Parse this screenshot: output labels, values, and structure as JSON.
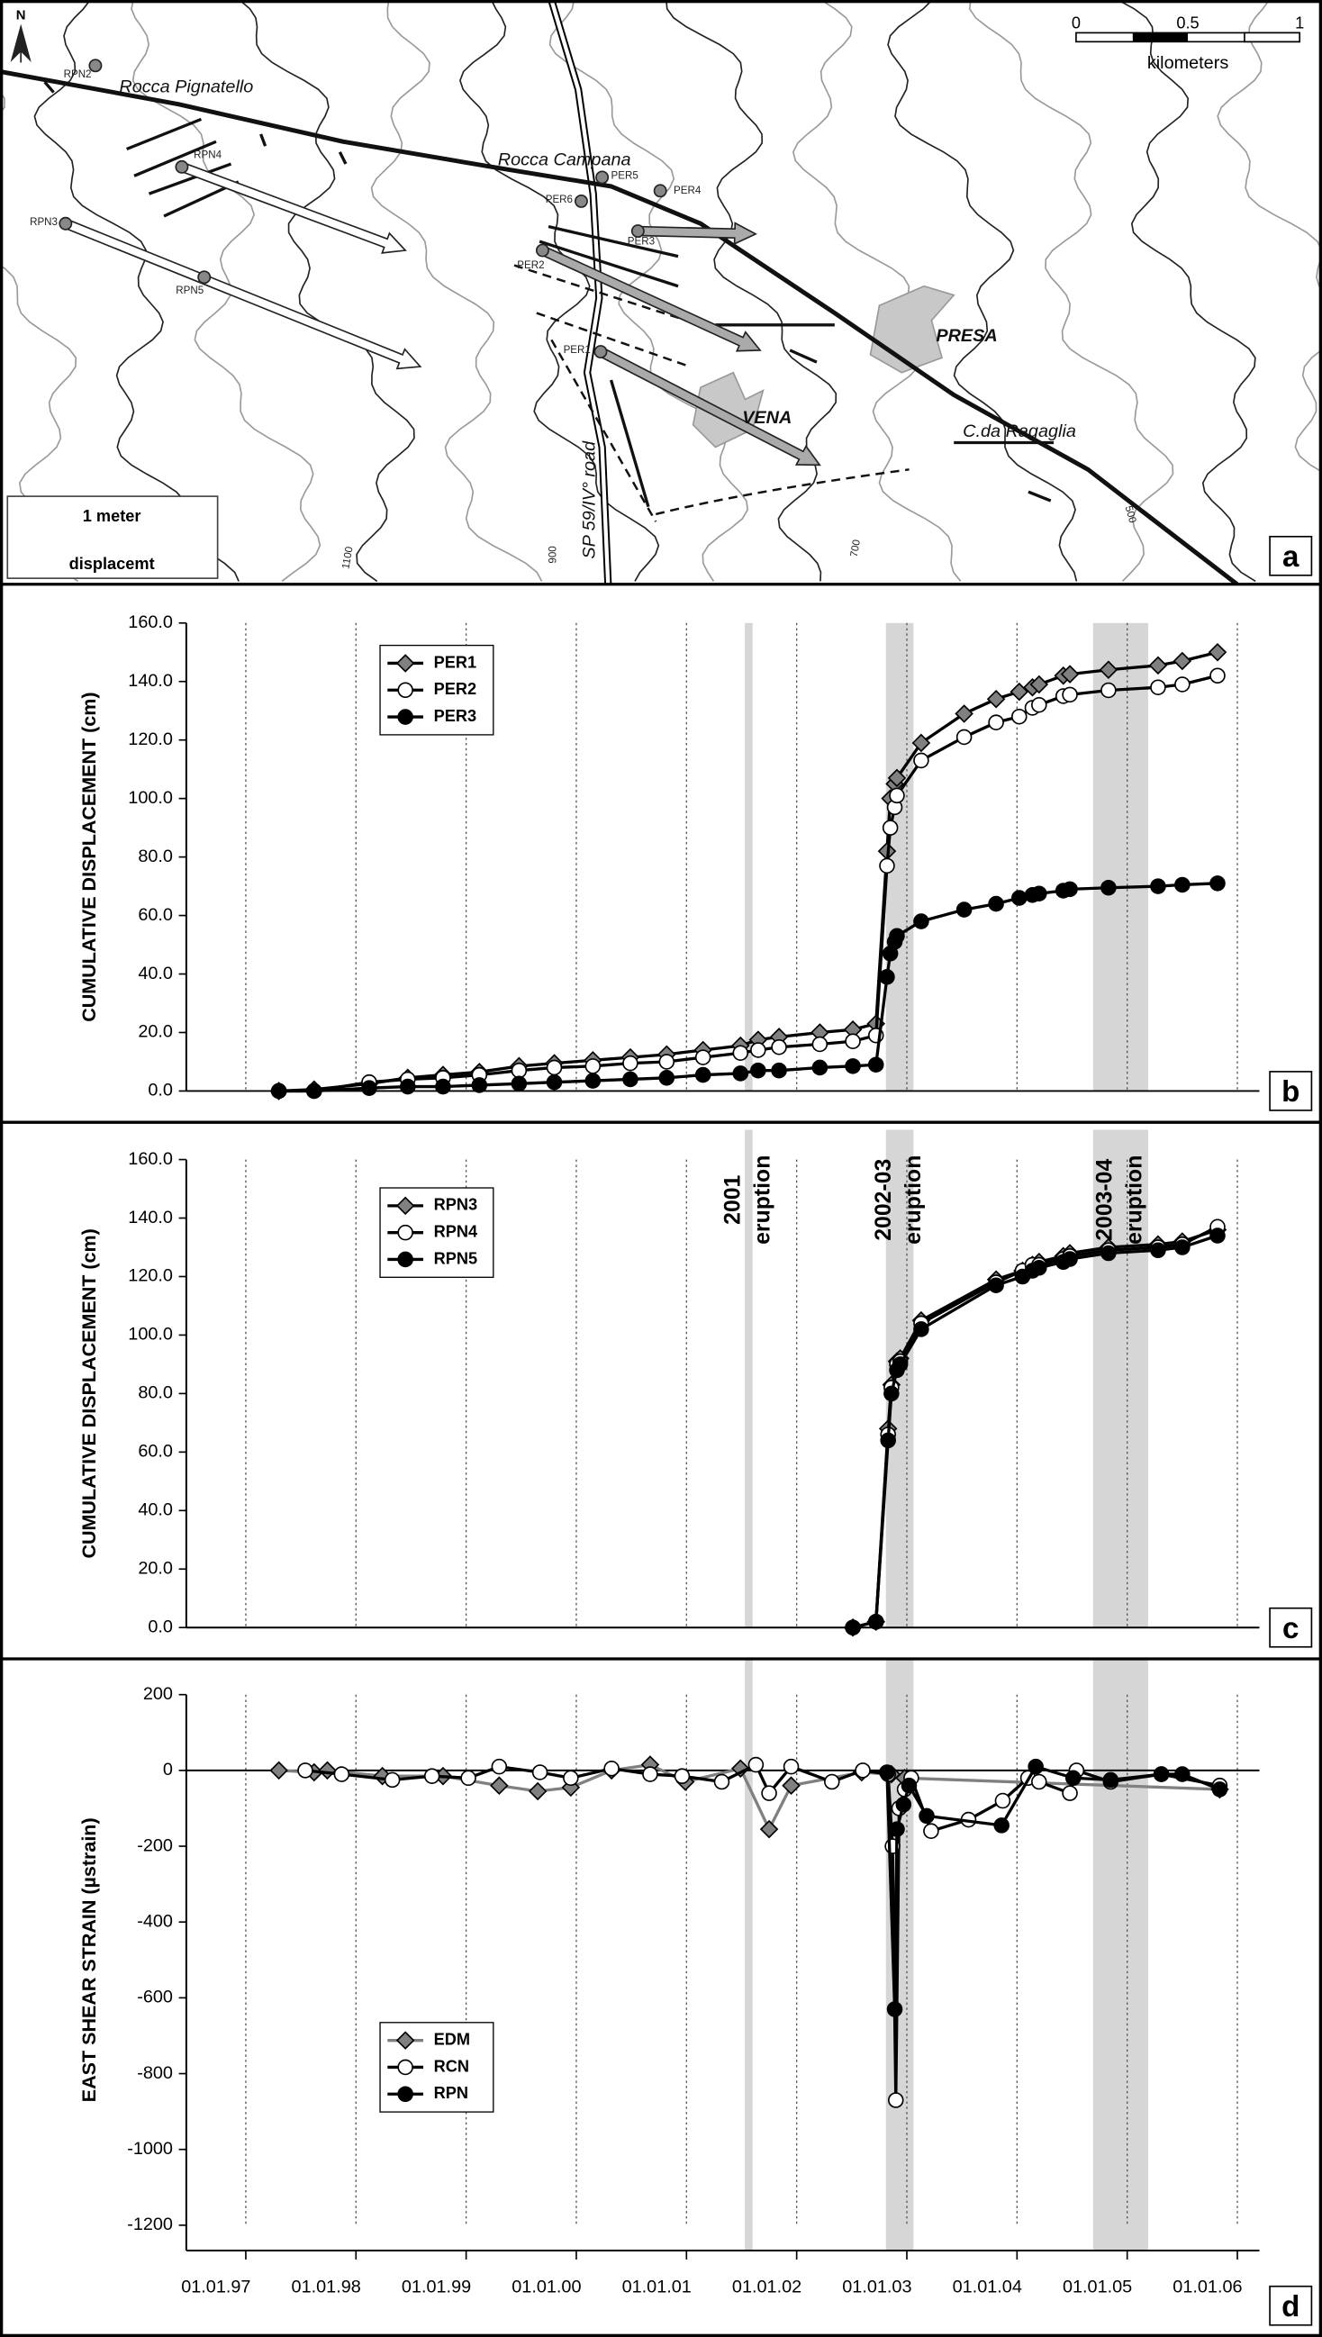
{
  "map": {
    "panel_label": "a",
    "north": "N",
    "scale_bar": {
      "ticks": [
        "0",
        "0.5",
        "1"
      ],
      "unit": "kilometers"
    },
    "displacement_scale": {
      "label": "1 meter",
      "caption": "displacemt"
    },
    "places": [
      "Rocca Pignatello",
      "Rocca Campana",
      "PRESA",
      "VENA",
      "C.da Ragaglia",
      "SP 59/IV° road"
    ],
    "stations": [
      "RPN2",
      "RPN4",
      "RPN3",
      "RPN5",
      "PER6",
      "PER5",
      "PER4",
      "PER3",
      "PER2",
      "PER1"
    ],
    "contour_labels": [
      "1100",
      "900",
      "700",
      "500"
    ]
  },
  "chart_data": [
    {
      "type": "line",
      "panel_label": "b",
      "ylabel": "CUMULATIVE DISPLACEMENT (cm)",
      "x": [
        1997.3,
        1997.62,
        1998.12,
        1998.47,
        1998.79,
        1999.12,
        1999.48,
        1999.8,
        2000.15,
        2000.49,
        2000.82,
        2001.15,
        2001.49,
        2001.65,
        2001.84,
        2002.21,
        2002.51,
        2002.72,
        2002.82,
        2002.85,
        2002.89,
        2002.91,
        2003.13,
        2003.52,
        2003.81,
        2004.02,
        2004.14,
        2004.2,
        2004.42,
        2004.48,
        2004.83,
        2005.28,
        2005.5,
        2005.82
      ],
      "xlim": [
        1996.46,
        2006.2
      ],
      "xticks": [
        1997,
        1998,
        1999,
        2000,
        2001,
        2002,
        2003,
        2004,
        2005,
        2006
      ],
      "show_xtick_labels": false,
      "ylim": [
        0,
        160
      ],
      "yticks": [
        {
          "value": 0,
          "label": "0.0"
        },
        {
          "value": 20,
          "label": "20.0"
        },
        {
          "value": 40,
          "label": "40.0"
        },
        {
          "value": 60,
          "label": "60.0"
        },
        {
          "value": 80,
          "label": "80.0"
        },
        {
          "value": 100,
          "label": "100.0"
        },
        {
          "value": 120,
          "label": "120.0"
        },
        {
          "value": 140,
          "label": "140.0"
        },
        {
          "value": 160,
          "label": "160.0"
        }
      ],
      "shaded_spans": [
        {
          "range": [
            2001.53,
            2001.6
          ]
        },
        {
          "range": [
            2002.81,
            2003.06
          ]
        },
        {
          "range": [
            2004.69,
            2005.19
          ]
        }
      ],
      "legend": "upper left",
      "series": [
        {
          "name": "PER1",
          "color": "#808080",
          "line_color": "#000000",
          "marker": "diamond",
          "values": [
            0,
            0.5,
            2.5,
            4.5,
            5.5,
            6.5,
            8.5,
            9.5,
            10.5,
            11.5,
            12.5,
            14,
            15.5,
            17.5,
            18.5,
            20,
            21,
            23,
            82,
            100,
            105,
            107,
            119,
            129,
            134,
            136.5,
            138,
            139,
            142,
            142.5,
            144,
            145.5,
            147,
            150
          ]
        },
        {
          "name": "PER2",
          "color": "#ffffff",
          "line_color": "#000000",
          "marker": "circle",
          "values": [
            0,
            0,
            3,
            4,
            4.5,
            5.5,
            7,
            8,
            8.5,
            9.5,
            10,
            11.5,
            13,
            14,
            15,
            16,
            17,
            19,
            77,
            90,
            97,
            101,
            113,
            121,
            126,
            128,
            131,
            132,
            135,
            135.5,
            137,
            138,
            139,
            142
          ]
        },
        {
          "name": "PER3",
          "color": "#000000",
          "line_color": "#000000",
          "marker": "circle",
          "values": [
            0,
            0,
            1,
            1.5,
            1.5,
            2,
            2.5,
            3,
            3.5,
            4,
            4.5,
            5.5,
            6,
            7,
            7,
            8,
            8.5,
            9,
            39,
            47,
            51,
            53,
            58,
            62,
            64,
            66,
            67,
            67.5,
            68.5,
            69,
            69.5,
            70,
            70.5,
            71
          ]
        }
      ]
    },
    {
      "type": "line",
      "panel_label": "c",
      "ylabel": "CUMULATIVE DISPLACEMENT (cm)",
      "x": [
        2002.51,
        2002.72,
        2002.83,
        2002.86,
        2002.91,
        2002.94,
        2003.13,
        2003.81,
        2004.05,
        2004.14,
        2004.2,
        2004.42,
        2004.48,
        2004.83,
        2005.28,
        2005.5,
        2005.82
      ],
      "xlim": [
        1996.46,
        2006.2
      ],
      "xticks": [
        1997,
        1998,
        1999,
        2000,
        2001,
        2002,
        2003,
        2004,
        2005,
        2006
      ],
      "show_xtick_labels": false,
      "ylim": [
        0,
        160
      ],
      "yticks": [
        {
          "value": 0,
          "label": "0.0"
        },
        {
          "value": 20,
          "label": "20.0"
        },
        {
          "value": 40,
          "label": "40.0"
        },
        {
          "value": 60,
          "label": "60.0"
        },
        {
          "value": 80,
          "label": "80.0"
        },
        {
          "value": 100,
          "label": "100.0"
        },
        {
          "value": 120,
          "label": "120.0"
        },
        {
          "value": 140,
          "label": "140.0"
        },
        {
          "value": 160,
          "label": "160.0"
        }
      ],
      "shaded_spans": [
        {
          "range": [
            2001.53,
            2001.6
          ],
          "label": [
            "2001",
            "eruption"
          ]
        },
        {
          "range": [
            2002.81,
            2003.06
          ],
          "label": [
            "2002-03",
            "eruption"
          ]
        },
        {
          "range": [
            2004.69,
            2005.19
          ],
          "label": [
            "2003-04",
            "eruption"
          ]
        }
      ],
      "legend": "upper left",
      "series": [
        {
          "name": "RPN3",
          "color": "#808080",
          "line_color": "#000000",
          "marker": "diamond",
          "values": [
            0,
            2,
            68,
            83,
            91,
            92,
            105,
            119,
            122,
            124,
            125,
            127,
            128,
            130,
            131,
            132,
            136
          ]
        },
        {
          "name": "RPN4",
          "color": "#ffffff",
          "line_color": "#000000",
          "marker": "circle",
          "values": [
            0,
            2,
            66,
            82,
            90,
            91,
            104,
            118,
            122,
            124,
            124,
            126,
            127,
            129,
            130,
            131,
            137
          ]
        },
        {
          "name": "RPN5",
          "color": "#000000",
          "line_color": "#000000",
          "marker": "circle",
          "values": [
            0,
            2,
            64,
            80,
            88,
            90,
            102,
            117,
            120,
            122,
            123,
            125,
            126,
            128,
            129,
            130,
            134
          ]
        }
      ]
    },
    {
      "type": "line",
      "panel_label": "d",
      "ylabel": "EAST SHEAR STRAIN (µstrain)",
      "xlim": [
        1996.46,
        2006.2
      ],
      "xticks": [
        {
          "value": 1997,
          "label": "01.01.97"
        },
        {
          "value": 1998,
          "label": "01.01.98"
        },
        {
          "value": 1999,
          "label": "01.01.99"
        },
        {
          "value": 2000,
          "label": "01.01.00"
        },
        {
          "value": 2001,
          "label": "01.01.01"
        },
        {
          "value": 2002,
          "label": "01.01.02"
        },
        {
          "value": 2003,
          "label": "01.01.03"
        },
        {
          "value": 2004,
          "label": "01.01.04"
        },
        {
          "value": 2005,
          "label": "01.01.05"
        },
        {
          "value": 2006,
          "label": "01.01.06"
        }
      ],
      "ylim": [
        -1200,
        200
      ],
      "yticks": [
        200,
        0,
        -200,
        -400,
        -600,
        -800,
        -1000,
        -1200
      ],
      "shaded_spans": [
        {
          "range": [
            2001.53,
            2001.6
          ]
        },
        {
          "range": [
            2002.81,
            2003.06
          ]
        },
        {
          "range": [
            2004.69,
            2005.19
          ]
        }
      ],
      "legend": "lower left",
      "series": [
        {
          "name": "EDM",
          "color": "#808080",
          "line_color": "#808080",
          "marker": "diamond",
          "x": [
            1997.3,
            1997.62,
            1997.74,
            1998.24,
            1998.79,
            1999.3,
            1999.65,
            1999.95,
            2000.32,
            2000.67,
            2000.99,
            2001.49,
            2001.75,
            2001.95,
            2002.59,
            2002.86,
            2002.98,
            2005.84
          ],
          "values": [
            0,
            -5,
            0,
            -15,
            -15,
            -40,
            -55,
            -45,
            0,
            15,
            -30,
            5,
            -155,
            -40,
            -5,
            -10,
            -20,
            -50
          ]
        },
        {
          "name": "RCN",
          "color": "#ffffff",
          "line_color": "#000000",
          "marker": "circle",
          "x": [
            1997.54,
            1997.87,
            1998.33,
            1998.69,
            1999.02,
            1999.3,
            1999.67,
            1999.95,
            2000.32,
            2000.67,
            2000.96,
            2001.32,
            2001.63,
            2001.75,
            2001.95,
            2002.32,
            2002.6,
            2002.83,
            2002.87,
            2002.9,
            2002.93,
            2002.98,
            2003.04,
            2003.22,
            2003.56,
            2003.87,
            2004.1,
            2004.2,
            2004.48,
            2004.54,
            2004.85,
            2005.31,
            2005.84
          ],
          "values": [
            0,
            -10,
            -25,
            -15,
            -20,
            10,
            -5,
            -20,
            5,
            -10,
            -15,
            -30,
            15,
            -60,
            10,
            -30,
            0,
            -10,
            -200,
            -870,
            -100,
            -50,
            -20,
            -160,
            -130,
            -80,
            -20,
            -30,
            -60,
            0,
            -30,
            -10,
            -40
          ]
        },
        {
          "name": "RPN",
          "color": "#000000",
          "line_color": "#000000",
          "marker": "circle",
          "x": [
            2002.82,
            2002.89,
            2002.91,
            2002.97,
            2003.02,
            2003.18,
            2003.86,
            2004.17,
            2004.51,
            2004.85,
            2005.31,
            2005.5,
            2005.84
          ],
          "values": [
            -5,
            -630,
            -155,
            -90,
            -40,
            -120,
            -145,
            10,
            -20,
            -25,
            -10,
            -10,
            -50
          ]
        }
      ]
    }
  ]
}
